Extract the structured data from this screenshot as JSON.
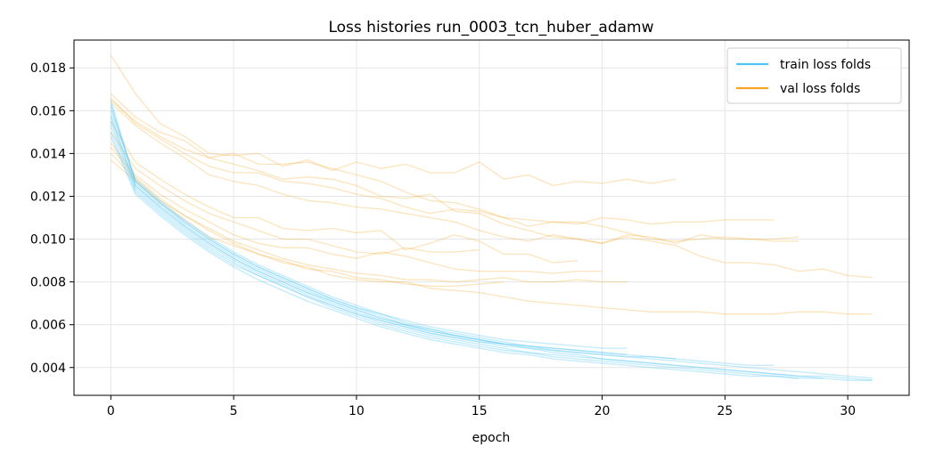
{
  "chart_data": {
    "type": "line",
    "title": "Loss histories run_0003_tcn_huber_adamw",
    "xlabel": "epoch",
    "ylabel": "",
    "xlim": [
      -1.5,
      32.5
    ],
    "ylim": [
      0.0027,
      0.0193
    ],
    "xticks": [
      0,
      5,
      10,
      15,
      20,
      25,
      30
    ],
    "yticks": [
      0.004,
      0.006,
      0.008,
      0.01,
      0.012,
      0.014,
      0.016,
      0.018
    ],
    "ytick_labels": [
      "0.004",
      "0.006",
      "0.008",
      "0.010",
      "0.012",
      "0.014",
      "0.016",
      "0.018"
    ],
    "grid": true,
    "legend_position": "top-right",
    "colors": {
      "train": "#4fc3f7",
      "val": "#f5a623"
    },
    "legend": [
      {
        "label": "train loss folds",
        "group": "train"
      },
      {
        "label": "val loss folds",
        "group": "val"
      }
    ],
    "series": [
      {
        "group": "train",
        "values": [
          0.0158,
          0.0125,
          0.0115,
          0.0106,
          0.0098,
          0.0091,
          0.0085,
          0.008,
          0.0075,
          0.007,
          0.0066,
          0.0062,
          0.0059,
          0.0056,
          0.0054,
          0.0052,
          0.005,
          0.0049,
          0.0048,
          0.0047,
          0.0046,
          0.0045,
          0.0044,
          0.0043,
          0.0042,
          0.0041,
          0.004,
          0.0039,
          0.0038,
          0.0037,
          0.0036,
          0.0035
        ]
      },
      {
        "group": "train",
        "values": [
          0.0162,
          0.0127,
          0.0117,
          0.0108,
          0.01,
          0.0093,
          0.0087,
          0.0082,
          0.0077,
          0.0072,
          0.0068,
          0.0064,
          0.006,
          0.0057,
          0.0055,
          0.0053,
          0.0051,
          0.0049,
          0.0047,
          0.0046,
          0.0044,
          0.0043,
          0.0042,
          0.0041,
          0.004,
          0.0039,
          0.0038,
          0.0037,
          0.0036,
          0.0036,
          0.0035,
          0.0034
        ]
      },
      {
        "group": "train",
        "values": [
          0.0155,
          0.0124,
          0.0114,
          0.0105,
          0.0097,
          0.009,
          0.0084,
          0.0079,
          0.0074,
          0.0069,
          0.0065,
          0.0061,
          0.0058,
          0.0055,
          0.0053,
          0.0051,
          0.0049,
          0.0047,
          0.0046,
          0.0045,
          0.0044,
          0.0043,
          0.0042,
          0.0041,
          0.004,
          0.0039,
          0.0038,
          0.0037,
          0.0036,
          0.0035
        ]
      },
      {
        "group": "train",
        "values": [
          0.015,
          0.0122,
          0.0112,
          0.0103,
          0.0095,
          0.0088,
          0.0083,
          0.0078,
          0.0073,
          0.0068,
          0.0064,
          0.006,
          0.0057,
          0.0054,
          0.0052,
          0.005,
          0.0048,
          0.0047,
          0.0045,
          0.0044,
          0.0043,
          0.0042,
          0.0041,
          0.004,
          0.0039,
          0.0038,
          0.0037,
          0.0036,
          0.0035,
          0.0035,
          0.0034,
          0.0034
        ]
      },
      {
        "group": "train",
        "values": [
          0.0165,
          0.0126,
          0.0116,
          0.0107,
          0.0099,
          0.0092,
          0.0086,
          0.0081,
          0.0076,
          0.0071,
          0.0067,
          0.0063,
          0.006,
          0.0057,
          0.0055,
          0.0053,
          0.0051,
          0.005,
          0.0049,
          0.0048,
          0.0047,
          0.0046,
          0.0045,
          0.0044,
          0.0043,
          0.0042,
          0.0041,
          0.0041
        ]
      },
      {
        "group": "train",
        "values": [
          0.0153,
          0.0123,
          0.0113,
          0.0104,
          0.0096,
          0.0089,
          0.0083,
          0.0078,
          0.0073,
          0.0069,
          0.0065,
          0.0062,
          0.0059,
          0.0056,
          0.0054,
          0.0052,
          0.0051
        ]
      },
      {
        "group": "train",
        "values": [
          0.016,
          0.0128,
          0.0118,
          0.0109,
          0.0101,
          0.0094,
          0.0088,
          0.0083,
          0.0078,
          0.0073,
          0.0069,
          0.0065,
          0.0062,
          0.0059,
          0.0057,
          0.0055,
          0.0053,
          0.0052,
          0.0051,
          0.005,
          0.0049,
          0.0049
        ]
      },
      {
        "group": "train",
        "values": [
          0.0157,
          0.0125,
          0.0115,
          0.0106,
          0.0098,
          0.0091,
          0.0085,
          0.008,
          0.0075,
          0.0071,
          0.0067,
          0.0063,
          0.006,
          0.0058,
          0.0055,
          0.0053,
          0.0051,
          0.005,
          0.0048,
          0.0047,
          0.0046,
          0.0045,
          0.0045,
          0.0044
        ]
      },
      {
        "group": "train",
        "values": [
          0.0148,
          0.0121,
          0.0111,
          0.0102,
          0.0094,
          0.0087,
          0.0081,
          0.0076,
          0.0071,
          0.0067,
          0.0063,
          0.0059,
          0.0056,
          0.0053,
          0.0051,
          0.0049,
          0.0047,
          0.0046,
          0.0044,
          0.0043,
          0.0042,
          0.0041,
          0.004,
          0.0039,
          0.0038,
          0.0037,
          0.0036,
          0.0036,
          0.0035
        ]
      },
      {
        "group": "train",
        "values": [
          0.0163,
          0.0127,
          0.0117,
          0.0108,
          0.01,
          0.0093,
          0.0087,
          0.0082,
          0.0077,
          0.0072,
          0.0068,
          0.0065,
          0.0061,
          0.0058,
          0.0056,
          0.0054,
          0.0052,
          0.005,
          0.0049,
          0.0048,
          0.0047,
          0.0046
        ]
      },
      {
        "group": "val",
        "values": [
          0.0186,
          0.0168,
          0.0154,
          0.0148,
          0.014,
          0.0139,
          0.014,
          0.0134,
          0.0137,
          0.0132,
          0.0136,
          0.0133,
          0.0135,
          0.0131,
          0.0131,
          0.0136,
          0.0128,
          0.013,
          0.0125,
          0.0127,
          0.0126,
          0.0128,
          0.0126,
          0.0128
        ]
      },
      {
        "group": "val",
        "values": [
          0.0168,
          0.0157,
          0.015,
          0.0146,
          0.0138,
          0.014,
          0.0135,
          0.0135,
          0.0136,
          0.0133,
          0.013,
          0.0127,
          0.0122,
          0.0118,
          0.0117,
          0.0114,
          0.011,
          0.0106,
          0.0108,
          0.0107,
          0.011,
          0.0109,
          0.0107,
          0.0108,
          0.0108,
          0.0109,
          0.0109,
          0.0109
        ]
      },
      {
        "group": "val",
        "values": [
          0.0165,
          0.0155,
          0.0148,
          0.0142,
          0.0138,
          0.0135,
          0.0132,
          0.0128,
          0.0129,
          0.0128,
          0.0125,
          0.012,
          0.0119,
          0.0121,
          0.0113,
          0.0112,
          0.0107,
          0.0104,
          0.0101,
          0.01,
          0.0098,
          0.0102,
          0.0101,
          0.0098,
          0.0102,
          0.01,
          0.01,
          0.01,
          0.0101
        ]
      },
      {
        "group": "val",
        "values": [
          0.0166,
          0.0154,
          0.0147,
          0.014,
          0.0134,
          0.0131,
          0.0131,
          0.0127,
          0.0126,
          0.0124,
          0.0121,
          0.0119,
          0.0115,
          0.0112,
          0.0114,
          0.0113,
          0.011,
          0.0109,
          0.0108,
          0.0108,
          0.0106,
          0.0103,
          0.01,
          0.0099,
          0.01,
          0.0101,
          0.01,
          0.0099,
          0.0099
        ]
      },
      {
        "group": "val",
        "values": [
          0.0164,
          0.0153,
          0.0145,
          0.0138,
          0.013,
          0.0127,
          0.0125,
          0.0121,
          0.0118,
          0.0117,
          0.0115,
          0.0114,
          0.0112,
          0.011,
          0.0108,
          0.0104,
          0.0101,
          0.0099,
          0.0102,
          0.01,
          0.0098,
          0.0101,
          0.0099,
          0.0097,
          0.0092,
          0.0089,
          0.0089,
          0.0088,
          0.0085,
          0.0086,
          0.0083,
          0.0082
        ]
      },
      {
        "group": "val",
        "values": [
          0.0155,
          0.0136,
          0.0128,
          0.0121,
          0.0115,
          0.011,
          0.011,
          0.0105,
          0.0104,
          0.0105,
          0.0103,
          0.0104,
          0.0095,
          0.0098,
          0.0102,
          0.0099,
          0.0093,
          0.0093,
          0.0089,
          0.009
        ]
      },
      {
        "group": "val",
        "values": [
          0.015,
          0.0133,
          0.0125,
          0.0118,
          0.0112,
          0.0108,
          0.0104,
          0.01,
          0.01,
          0.0097,
          0.0094,
          0.0093,
          0.0096,
          0.0094,
          0.0094,
          0.0095
        ]
      },
      {
        "group": "val",
        "values": [
          0.0145,
          0.013,
          0.0121,
          0.0114,
          0.0108,
          0.0102,
          0.0098,
          0.0096,
          0.0096,
          0.0093,
          0.0091,
          0.0094,
          0.0092,
          0.0089,
          0.0086,
          0.0085,
          0.0085,
          0.0085,
          0.0084,
          0.0085,
          0.0085
        ]
      },
      {
        "group": "val",
        "values": [
          0.014,
          0.0128,
          0.0118,
          0.0111,
          0.0105,
          0.0099,
          0.0095,
          0.0091,
          0.0088,
          0.0086,
          0.0084,
          0.0083,
          0.0081,
          0.0081,
          0.008,
          0.0081,
          0.0082,
          0.008,
          0.008,
          0.0081,
          0.008,
          0.008
        ]
      },
      {
        "group": "val",
        "values": [
          0.0137,
          0.0127,
          0.0117,
          0.0109,
          0.0101,
          0.0097,
          0.0093,
          0.009,
          0.0086,
          0.0085,
          0.0082,
          0.0081,
          0.0079,
          0.0078,
          0.0078,
          0.0079,
          0.008
        ]
      },
      {
        "group": "val",
        "values": [
          0.0143,
          0.0129,
          0.0119,
          0.0111,
          0.0104,
          0.0098,
          0.0093,
          0.0089,
          0.0087,
          0.0083,
          0.0081,
          0.008,
          0.008,
          0.0077,
          0.0076,
          0.0075,
          0.0073,
          0.0071,
          0.007,
          0.0069,
          0.0068,
          0.0067,
          0.0066,
          0.0066,
          0.0066,
          0.0065,
          0.0065,
          0.0065,
          0.0066,
          0.0066,
          0.0065,
          0.0065
        ]
      }
    ]
  }
}
